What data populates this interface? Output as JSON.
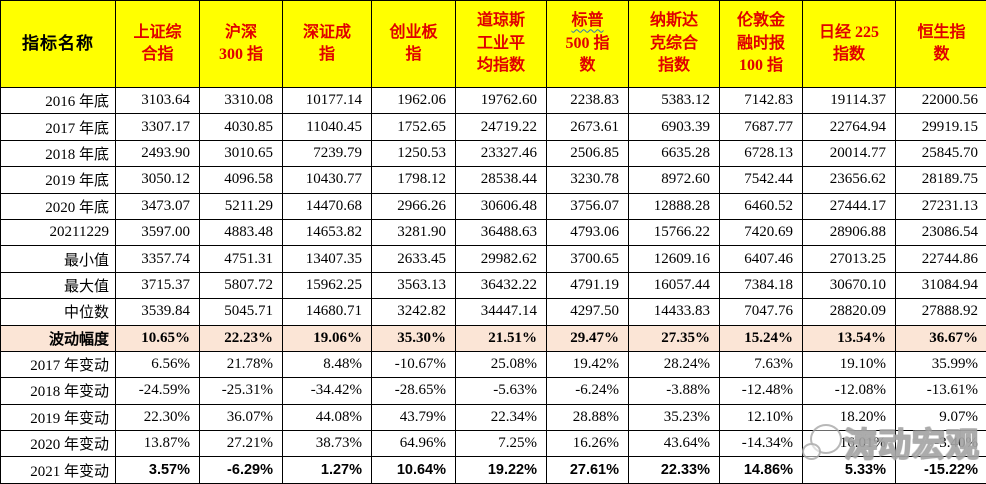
{
  "colors": {
    "header_bg": "#FFFF00",
    "header_text": "#E00000",
    "highlight_row_bg": "#FBE5D6",
    "border": "#000000"
  },
  "watermark": {
    "text": "涛动宏观",
    "icon": "wechat-chat-bubbles-icon"
  },
  "table": {
    "header": {
      "name_col": "指标名称",
      "columns": [
        {
          "label": "上证综\n合指"
        },
        {
          "label": "沪深\n300 指"
        },
        {
          "label": "深证成\n指"
        },
        {
          "label": "创业板\n指"
        },
        {
          "label": "道琼斯\n工业平\n均指数"
        },
        {
          "label": "标普\n500 指\n数",
          "squiggle": true
        },
        {
          "label": "纳斯达\n克综合\n指数"
        },
        {
          "label": "伦敦金\n融时报\n100 指"
        },
        {
          "label": "日经 225\n指数"
        },
        {
          "label": "恒生指\n数"
        }
      ]
    },
    "rows": [
      {
        "label": "2016 年底",
        "style": "number",
        "values": [
          "3103.64",
          "3310.08",
          "10177.14",
          "1962.06",
          "19762.60",
          "2238.83",
          "5383.12",
          "7142.83",
          "19114.37",
          "22000.56"
        ]
      },
      {
        "label": "2017 年底",
        "style": "number",
        "values": [
          "3307.17",
          "4030.85",
          "11040.45",
          "1752.65",
          "24719.22",
          "2673.61",
          "6903.39",
          "7687.77",
          "22764.94",
          "29919.15"
        ]
      },
      {
        "label": "2018 年底",
        "style": "number",
        "values": [
          "2493.90",
          "3010.65",
          "7239.79",
          "1250.53",
          "23327.46",
          "2506.85",
          "6635.28",
          "6728.13",
          "20014.77",
          "25845.70"
        ]
      },
      {
        "label": "2019 年底",
        "style": "number",
        "values": [
          "3050.12",
          "4096.58",
          "10430.77",
          "1798.12",
          "28538.44",
          "3230.78",
          "8972.60",
          "7542.44",
          "23656.62",
          "28189.75"
        ]
      },
      {
        "label": "2020 年底",
        "style": "number",
        "values": [
          "3473.07",
          "5211.29",
          "14470.68",
          "2966.26",
          "30606.48",
          "3756.07",
          "12888.28",
          "6460.52",
          "27444.17",
          "27231.13"
        ]
      },
      {
        "label": "20211229",
        "style": "number",
        "values": [
          "3597.00",
          "4883.48",
          "14653.82",
          "3281.90",
          "36488.63",
          "4793.06",
          "15766.22",
          "7420.69",
          "28906.88",
          "23086.54"
        ]
      },
      {
        "label": "最小值",
        "style": "number",
        "values": [
          "3357.74",
          "4751.31",
          "13407.35",
          "2633.45",
          "29982.62",
          "3700.65",
          "12609.16",
          "6407.46",
          "27013.25",
          "22744.86"
        ]
      },
      {
        "label": "最大值",
        "style": "number",
        "values": [
          "3715.37",
          "5807.72",
          "15962.25",
          "3563.13",
          "36432.22",
          "4791.19",
          "16057.44",
          "7384.18",
          "30670.10",
          "31084.94"
        ]
      },
      {
        "label": "中位数",
        "style": "number",
        "values": [
          "3539.84",
          "5045.71",
          "14680.71",
          "3242.82",
          "34447.14",
          "4297.50",
          "14433.83",
          "7047.76",
          "28820.09",
          "27888.92"
        ]
      },
      {
        "label": "波动幅度",
        "style": "highlight",
        "values": [
          "10.65%",
          "22.23%",
          "19.06%",
          "35.30%",
          "21.51%",
          "29.47%",
          "27.35%",
          "15.24%",
          "13.54%",
          "36.67%"
        ]
      },
      {
        "label": "2017 年变动",
        "style": "percent",
        "values": [
          "6.56%",
          "21.78%",
          "8.48%",
          "-10.67%",
          "25.08%",
          "19.42%",
          "28.24%",
          "7.63%",
          "19.10%",
          "35.99%"
        ]
      },
      {
        "label": "2018 年变动",
        "style": "percent",
        "values": [
          "-24.59%",
          "-25.31%",
          "-34.42%",
          "-28.65%",
          "-5.63%",
          "-6.24%",
          "-3.88%",
          "-12.48%",
          "-12.08%",
          "-13.61%"
        ]
      },
      {
        "label": "2019 年变动",
        "style": "percent",
        "values": [
          "22.30%",
          "36.07%",
          "44.08%",
          "43.79%",
          "22.34%",
          "28.88%",
          "35.23%",
          "12.10%",
          "18.20%",
          "9.07%"
        ]
      },
      {
        "label": "2020 年变动",
        "style": "percent",
        "values": [
          "13.87%",
          "27.21%",
          "38.73%",
          "64.96%",
          "7.25%",
          "16.26%",
          "43.64%",
          "-14.34%",
          "16.01%",
          "-3.40%"
        ]
      },
      {
        "label": "2021 年变动",
        "style": "percent-sans",
        "values": [
          "3.57%",
          "-6.29%",
          "1.27%",
          "10.64%",
          "19.22%",
          "27.61%",
          "22.33%",
          "14.86%",
          "5.33%",
          "-15.22%"
        ]
      }
    ]
  }
}
